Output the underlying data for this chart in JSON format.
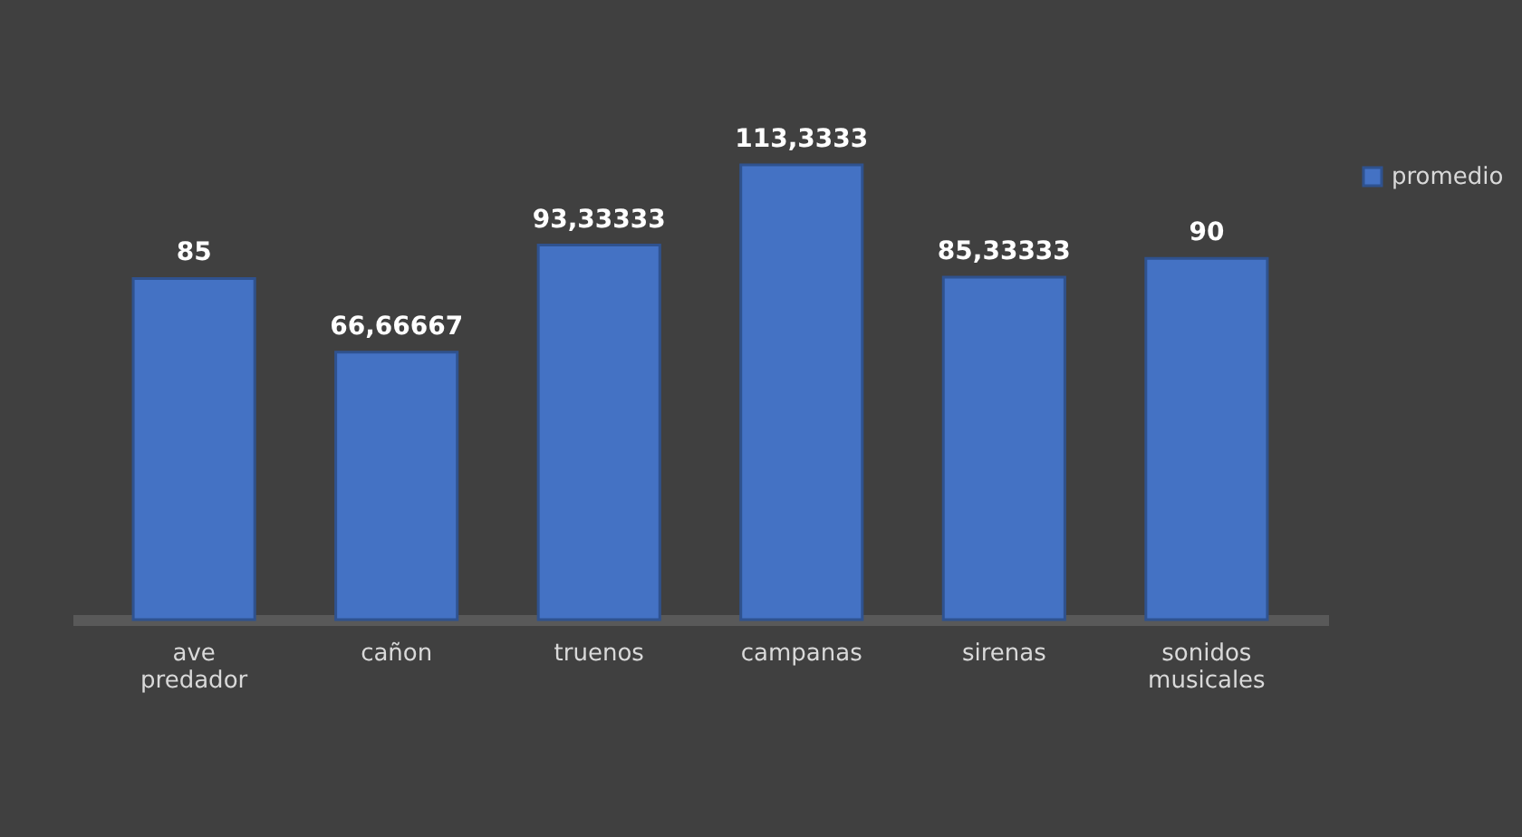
{
  "chart_data": {
    "type": "bar",
    "categories": [
      "ave predador",
      "cañon",
      "truenos",
      "campanas",
      "sirenas",
      "sonidos musicales"
    ],
    "series": [
      {
        "name": "promedio",
        "color": "#4472c4",
        "values": [
          85,
          66.66667,
          93.33333,
          113.3333,
          85.33333,
          90
        ],
        "value_labels": [
          "85",
          "66,66667",
          "93,33333",
          "113,3333",
          "85,33333",
          "90"
        ]
      }
    ],
    "legend": "right",
    "grid": false,
    "tick_labels": "x"
  }
}
